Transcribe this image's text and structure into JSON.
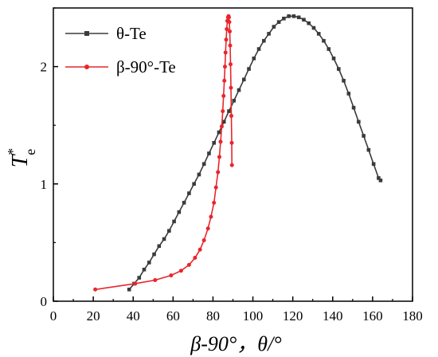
{
  "chart_data": {
    "type": "line",
    "xlabel": "β-90°，θ/°",
    "ylabel": "T*e",
    "xlim": [
      0,
      180
    ],
    "ylim": [
      0,
      2.5
    ],
    "x_ticks": [
      0,
      20,
      40,
      60,
      80,
      100,
      120,
      140,
      160,
      180
    ],
    "y_ticks": [
      0,
      1,
      2
    ],
    "grid": false,
    "legend_position": "top-left",
    "series": [
      {
        "name": "θ-Te",
        "color": "#3b3b3b",
        "marker": "square",
        "points": [
          [
            38,
            0.1
          ],
          [
            40.5,
            0.15
          ],
          [
            43,
            0.2
          ],
          [
            45.5,
            0.27
          ],
          [
            48,
            0.33
          ],
          [
            50.5,
            0.4
          ],
          [
            53,
            0.47
          ],
          [
            55.5,
            0.53
          ],
          [
            58,
            0.6
          ],
          [
            60.5,
            0.68
          ],
          [
            63,
            0.76
          ],
          [
            65.5,
            0.84
          ],
          [
            68,
            0.92
          ],
          [
            70.5,
            1.0
          ],
          [
            73,
            1.08
          ],
          [
            75.5,
            1.17
          ],
          [
            78,
            1.26
          ],
          [
            80.5,
            1.35
          ],
          [
            83,
            1.44
          ],
          [
            85.5,
            1.53
          ],
          [
            88,
            1.62
          ],
          [
            90.5,
            1.71
          ],
          [
            93,
            1.8
          ],
          [
            95.5,
            1.89
          ],
          [
            98,
            1.98
          ],
          [
            100.5,
            2.07
          ],
          [
            103,
            2.15
          ],
          [
            105.5,
            2.22
          ],
          [
            108,
            2.28
          ],
          [
            110.5,
            2.34
          ],
          [
            113,
            2.38
          ],
          [
            115.5,
            2.41
          ],
          [
            118,
            2.43
          ],
          [
            120.5,
            2.43
          ],
          [
            123,
            2.42
          ],
          [
            125.5,
            2.4
          ],
          [
            128,
            2.37
          ],
          [
            130.5,
            2.33
          ],
          [
            133,
            2.28
          ],
          [
            135.5,
            2.22
          ],
          [
            138,
            2.15
          ],
          [
            140.5,
            2.07
          ],
          [
            143,
            1.98
          ],
          [
            145.5,
            1.88
          ],
          [
            148,
            1.77
          ],
          [
            150.5,
            1.65
          ],
          [
            153,
            1.53
          ],
          [
            155.5,
            1.41
          ],
          [
            158,
            1.29
          ],
          [
            160.5,
            1.17
          ],
          [
            163,
            1.05
          ],
          [
            164,
            1.03
          ]
        ]
      },
      {
        "name": "β-90°-Te",
        "color": "#e8262b",
        "marker": "circle",
        "points": [
          [
            21,
            0.1
          ],
          [
            41,
            0.15
          ],
          [
            51,
            0.18
          ],
          [
            59,
            0.22
          ],
          [
            64,
            0.26
          ],
          [
            68,
            0.31
          ],
          [
            71,
            0.37
          ],
          [
            73.5,
            0.44
          ],
          [
            75.5,
            0.52
          ],
          [
            77.5,
            0.62
          ],
          [
            79,
            0.72
          ],
          [
            80.5,
            0.84
          ],
          [
            81.5,
            0.97
          ],
          [
            82.5,
            1.1
          ],
          [
            83.2,
            1.23
          ],
          [
            83.8,
            1.36
          ],
          [
            84.4,
            1.49
          ],
          [
            84.9,
            1.62
          ],
          [
            85.3,
            1.75
          ],
          [
            85.7,
            1.88
          ],
          [
            86.0,
            2.0
          ],
          [
            86.3,
            2.12
          ],
          [
            86.6,
            2.23
          ],
          [
            86.9,
            2.32
          ],
          [
            87.2,
            2.39
          ],
          [
            87.5,
            2.42
          ],
          [
            87.8,
            2.43
          ],
          [
            88.0,
            2.42
          ],
          [
            88.2,
            2.38
          ],
          [
            88.4,
            2.3
          ],
          [
            88.6,
            2.18
          ],
          [
            88.8,
            2.02
          ],
          [
            89.0,
            1.82
          ],
          [
            89.2,
            1.58
          ],
          [
            89.4,
            1.35
          ],
          [
            89.5,
            1.16
          ]
        ]
      }
    ]
  }
}
